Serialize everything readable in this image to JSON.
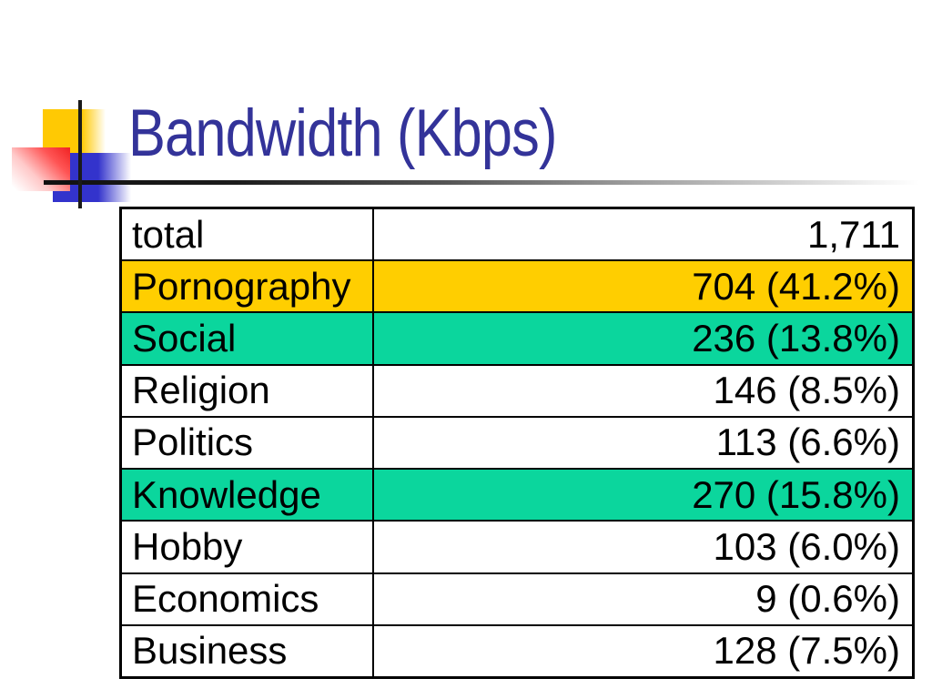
{
  "slide": {
    "title": "Bandwidth (Kbps)"
  },
  "theme": {
    "title_color": "#333399",
    "table_border_color": "#000000",
    "highlight_gold": "#FFCE00",
    "highlight_green": "#0BD69D",
    "decoration_yellow": "#FFC903",
    "decoration_blue": "#3333CC",
    "decoration_red": "#F02222"
  },
  "table": {
    "columns": [
      "category",
      "bandwidth"
    ],
    "rows": [
      {
        "label": "total",
        "value": "1,711",
        "highlight": "none"
      },
      {
        "label": "Pornography",
        "value": "704 (41.2%)",
        "highlight": "gold"
      },
      {
        "label": "Social",
        "value": "236 (13.8%)",
        "highlight": "green"
      },
      {
        "label": "Religion",
        "value": "146 (8.5%)",
        "highlight": "none"
      },
      {
        "label": "Politics",
        "value": "113 (6.6%)",
        "highlight": "none"
      },
      {
        "label": "Knowledge",
        "value": "270 (15.8%)",
        "highlight": "green"
      },
      {
        "label": "Hobby",
        "value": "103 (6.0%)",
        "highlight": "none"
      },
      {
        "label": "Economics",
        "value": "9 (0.6%)",
        "highlight": "none"
      },
      {
        "label": "Business",
        "value": "128 (7.5%)",
        "highlight": "none"
      }
    ]
  },
  "chart_data": {
    "type": "table",
    "title": "Bandwidth (Kbps)",
    "columns": [
      "Category",
      "Bandwidth (Kbps)"
    ],
    "rows": [
      [
        "total",
        "1,711"
      ],
      [
        "Pornography",
        "704 (41.2%)"
      ],
      [
        "Social",
        "236 (13.8%)"
      ],
      [
        "Religion",
        "146 (8.5%)"
      ],
      [
        "Politics",
        "113 (6.6%)"
      ],
      [
        "Knowledge",
        "270 (15.8%)"
      ],
      [
        "Hobby",
        "103 (6.0%)"
      ],
      [
        "Economics",
        "9 (0.6%)"
      ],
      [
        "Business",
        "128 (7.5%)"
      ]
    ],
    "values_kbps": {
      "total": 1711,
      "Pornography": 704,
      "Social": 236,
      "Religion": 146,
      "Politics": 113,
      "Knowledge": 270,
      "Hobby": 103,
      "Economics": 9,
      "Business": 128
    },
    "percentages": {
      "Pornography": 41.2,
      "Social": 13.8,
      "Religion": 8.5,
      "Politics": 6.6,
      "Knowledge": 15.8,
      "Hobby": 6.0,
      "Economics": 0.6,
      "Business": 7.5
    }
  }
}
